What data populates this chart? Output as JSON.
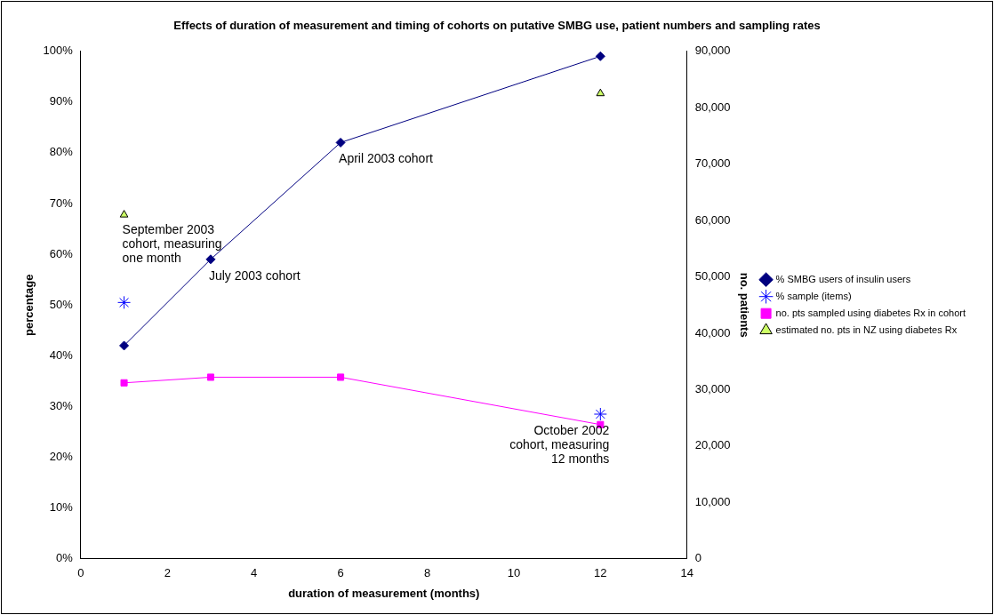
{
  "chart_data": {
    "type": "line",
    "title": "Effects of duration of measurement and timing of cohorts on putative SMBG use, patient numbers and sampling rates",
    "xlabel": "duration of measurement (months)",
    "ylabel": "percentage",
    "y2label": "no. patients",
    "xlim": [
      0,
      14
    ],
    "xticks": [
      0,
      2,
      4,
      6,
      8,
      10,
      12,
      14
    ],
    "ylim": [
      0,
      100
    ],
    "yticks": [
      {
        "value": 0,
        "label": "0%"
      },
      {
        "value": 10,
        "label": "10%"
      },
      {
        "value": 20,
        "label": "20%"
      },
      {
        "value": 30,
        "label": "30%"
      },
      {
        "value": 40,
        "label": "40%"
      },
      {
        "value": 50,
        "label": "50%"
      },
      {
        "value": 60,
        "label": "60%"
      },
      {
        "value": 70,
        "label": "70%"
      },
      {
        "value": 80,
        "label": "80%"
      },
      {
        "value": 90,
        "label": "90%"
      },
      {
        "value": 100,
        "label": "100%"
      }
    ],
    "y2lim": [
      0,
      90000
    ],
    "y2ticks": [
      {
        "value": 0,
        "label": "0"
      },
      {
        "value": 10000,
        "label": "10,000"
      },
      {
        "value": 20000,
        "label": "20,000"
      },
      {
        "value": 30000,
        "label": "30,000"
      },
      {
        "value": 40000,
        "label": "40,000"
      },
      {
        "value": 50000,
        "label": "50,000"
      },
      {
        "value": 60000,
        "label": "60,000"
      },
      {
        "value": 70000,
        "label": "70,000"
      },
      {
        "value": 80000,
        "label": "80,000"
      },
      {
        "value": 90000,
        "label": "90,000"
      }
    ],
    "grid": false,
    "legend": "right",
    "series": [
      {
        "name": "% SMBG users of insulin users",
        "type": "line",
        "marker": "diamond",
        "color": "#000080",
        "x": [
          1,
          3,
          6,
          12
        ],
        "values": [
          42,
          59,
          82,
          99
        ]
      },
      {
        "name": "% sample (items)",
        "type": "scatter",
        "marker": "cross",
        "color": "#0000ff",
        "x": [
          1,
          12
        ],
        "values": [
          50.5,
          28.5
        ]
      },
      {
        "name": "no. pts sampled using diabetes Rx in cohort",
        "type": "line",
        "marker": "square",
        "color": "#ff00ff",
        "axis": "y2",
        "x": [
          1,
          3,
          6,
          12
        ],
        "values": [
          31200,
          32200,
          32200,
          23800
        ]
      },
      {
        "name": "estimated no. pts in NZ using diabetes Rx",
        "type": "scatter",
        "marker": "triangle",
        "color": "#ccff66",
        "axis": "y2",
        "x": [
          1,
          12
        ],
        "values": [
          61000,
          82500
        ]
      }
    ],
    "annotations": [
      {
        "text": "September 2003 cohort, measuring one month",
        "x": 1,
        "y": 68
      },
      {
        "text": "July 2003 cohort",
        "x": 3,
        "y": 59
      },
      {
        "text": "April 2003 cohort",
        "x": 6,
        "y": 82
      },
      {
        "text": "October 2002 cohort, measuring 12 months",
        "x": 12,
        "y": 28.5
      }
    ]
  }
}
